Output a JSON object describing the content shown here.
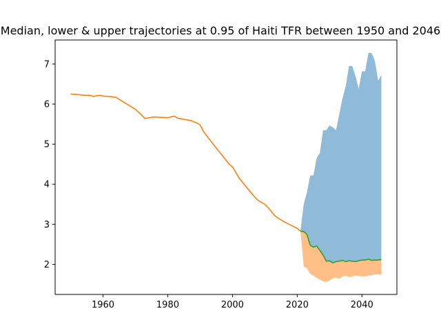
{
  "chart_data": {
    "type": "area",
    "title": "Median, lower & upper trajectories at 0.95 of Haiti TFR between 1950 and 2046",
    "xlabel": "",
    "ylabel": "",
    "xlim": [
      1945.2,
      2050.8
    ],
    "ylim": [
      1.25,
      7.6
    ],
    "xticks": [
      1960,
      1980,
      2000,
      2020,
      2040
    ],
    "yticks": [
      2,
      3,
      4,
      5,
      6,
      7
    ],
    "grid": false,
    "colors": {
      "history": "#ff7f0e",
      "median": "#2ca02c",
      "upper_band": "#1f77b4",
      "lower_band": "#ff7f0e"
    },
    "series": [
      {
        "role": "historical TFR",
        "x": [
          1950,
          1952,
          1954,
          1956,
          1957,
          1958,
          1959,
          1960,
          1962,
          1964,
          1966,
          1968,
          1970,
          1972,
          1973,
          1975,
          1976,
          1978,
          1980,
          1982,
          1983,
          1985,
          1987,
          1989,
          1990,
          1991,
          1993,
          1995,
          1997,
          1999,
          2000,
          2001,
          2002,
          2003,
          2005,
          2007,
          2008,
          2010,
          2011,
          2012,
          2013,
          2014,
          2016,
          2018,
          2020,
          2021
        ],
        "values": [
          6.25,
          6.24,
          6.22,
          6.22,
          6.19,
          6.21,
          6.22,
          6.2,
          6.19,
          6.17,
          6.07,
          5.97,
          5.87,
          5.72,
          5.64,
          5.67,
          5.68,
          5.67,
          5.66,
          5.7,
          5.65,
          5.62,
          5.59,
          5.53,
          5.48,
          5.32,
          5.11,
          4.9,
          4.7,
          4.5,
          4.43,
          4.3,
          4.16,
          4.06,
          3.86,
          3.67,
          3.59,
          3.5,
          3.42,
          3.32,
          3.22,
          3.16,
          3.06,
          2.98,
          2.9,
          2.83
        ]
      },
      {
        "role": "median",
        "x": [
          2021,
          2022,
          2023,
          2024,
          2025,
          2026,
          2027,
          2028,
          2029,
          2030,
          2031,
          2032,
          2033,
          2034,
          2035,
          2036,
          2037,
          2038,
          2039,
          2040,
          2041,
          2042,
          2043,
          2044,
          2045,
          2046
        ],
        "values": [
          2.83,
          2.82,
          2.75,
          2.48,
          2.43,
          2.46,
          2.35,
          2.23,
          2.08,
          2.09,
          2.04,
          2.07,
          2.08,
          2.1,
          2.07,
          2.09,
          2.08,
          2.07,
          2.09,
          2.11,
          2.11,
          2.13,
          2.1,
          2.11,
          2.11,
          2.12
        ]
      },
      {
        "role": "upper 0.95",
        "x": [
          2021,
          2022,
          2023,
          2024,
          2025,
          2026,
          2027,
          2028,
          2029,
          2030,
          2031,
          2032,
          2033,
          2034,
          2035,
          2036,
          2037,
          2038,
          2039,
          2040,
          2041,
          2042,
          2043,
          2044,
          2045,
          2046
        ],
        "values": [
          2.83,
          3.5,
          3.8,
          4.22,
          4.22,
          4.65,
          4.78,
          5.35,
          5.35,
          5.47,
          5.42,
          5.35,
          5.75,
          6.15,
          6.45,
          6.95,
          6.95,
          6.7,
          6.38,
          6.82,
          6.82,
          7.28,
          7.27,
          7.08,
          6.58,
          6.73
        ]
      },
      {
        "role": "lower 0.95",
        "x": [
          2021,
          2022,
          2023,
          2024,
          2025,
          2026,
          2027,
          2028,
          2029,
          2030,
          2031,
          2032,
          2033,
          2034,
          2035,
          2036,
          2037,
          2038,
          2039,
          2040,
          2041,
          2042,
          2043,
          2044,
          2045,
          2046
        ],
        "values": [
          2.83,
          1.95,
          1.9,
          1.77,
          1.72,
          1.67,
          1.62,
          1.58,
          1.56,
          1.6,
          1.65,
          1.67,
          1.64,
          1.7,
          1.72,
          1.68,
          1.7,
          1.72,
          1.71,
          1.7,
          1.7,
          1.72,
          1.73,
          1.75,
          1.75,
          1.75
        ]
      }
    ]
  }
}
